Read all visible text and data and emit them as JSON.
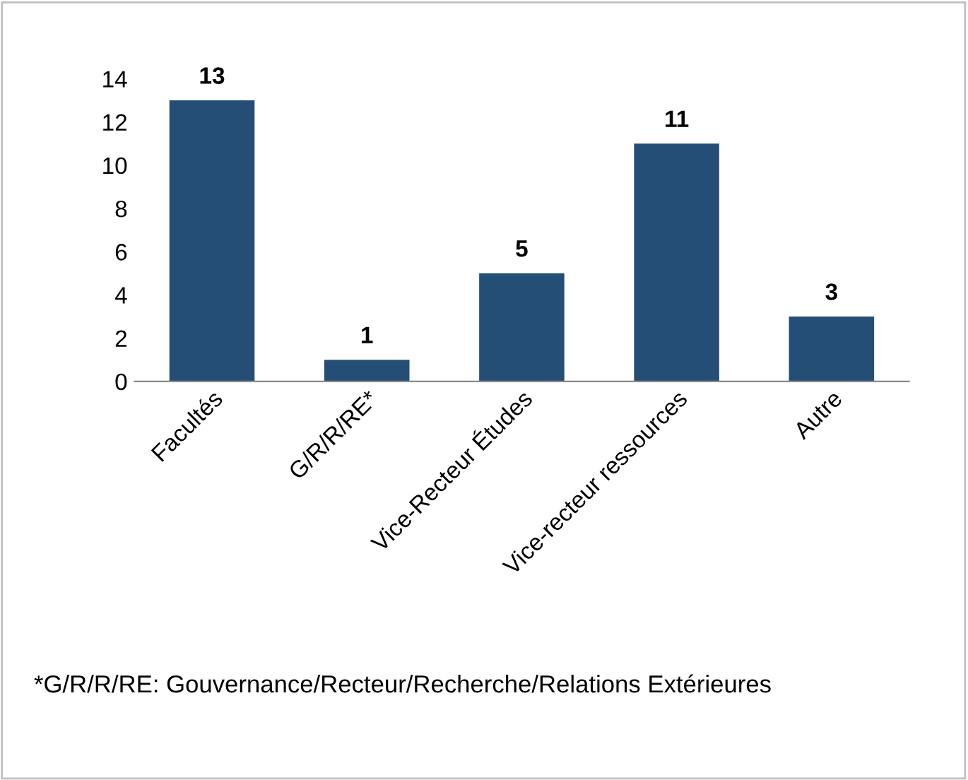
{
  "chart_data": {
    "type": "bar",
    "categories": [
      "Facultés",
      "G/R/R/RE*",
      "Vice-Recteur Études",
      "Vice-recteur ressources",
      "Autre"
    ],
    "values": [
      13,
      1,
      5,
      11,
      3
    ],
    "color": "#254e77",
    "ylim": [
      0,
      14
    ],
    "yticks": [
      0,
      2,
      4,
      6,
      8,
      10,
      12,
      14
    ],
    "data_labels": true,
    "annotations": [
      "*G/R/R/RE: Gouvernance/Recteur/Recherche/Relations Extérieures"
    ]
  }
}
